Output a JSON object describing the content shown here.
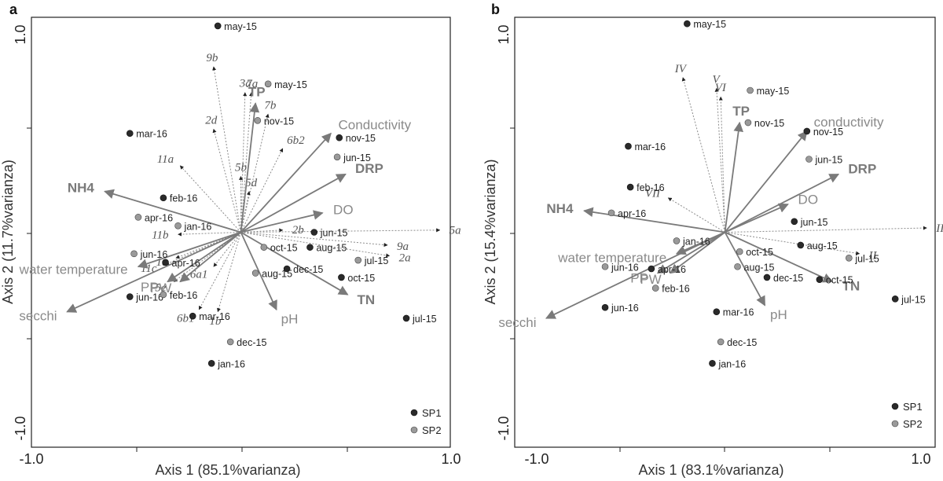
{
  "colors": {
    "frame": "#222222",
    "sp1": "#2a2a2a",
    "sp2": "#9a9a9a",
    "env_arrow": "#7a7a7a",
    "env_label": "#8a8a8a",
    "bold_label": "#7a7a7a",
    "species_line": "#8c8c8c",
    "species_label": "#555555",
    "sample_label": "#222222"
  },
  "chart_data": [
    {
      "type": "scatter",
      "panel_label": "a",
      "xlabel": "Axis 1 (85.1%varianza)",
      "ylabel": "Axis 2 (11.7%varianza)",
      "xlim": [
        -1.0,
        1.0
      ],
      "ylim": [
        -1.0,
        1.0
      ],
      "x_tick_labels": [
        "-1.0",
        "1.0"
      ],
      "y_tick_labels": [
        "1.0",
        "-1.0"
      ],
      "legend": [
        {
          "label": "SP1",
          "series": "SP1"
        },
        {
          "label": "SP2",
          "series": "SP2"
        }
      ],
      "legend_position": "bottom-right",
      "env_vectors": [
        {
          "label": "TP",
          "x": 0.07,
          "y": 0.6,
          "bold": true
        },
        {
          "label": "Conductivity",
          "x": 0.43,
          "y": 0.46,
          "bold": false
        },
        {
          "label": "DRP",
          "x": 0.5,
          "y": 0.27,
          "bold": true
        },
        {
          "label": "DO",
          "x": 0.39,
          "y": 0.09,
          "bold": false
        },
        {
          "label": "NH4",
          "x": -0.65,
          "y": 0.19,
          "bold": true
        },
        {
          "label": "water temperature",
          "x": -0.49,
          "y": -0.16,
          "bold": false
        },
        {
          "label": "PP",
          "x": -0.35,
          "y": -0.23,
          "bold": false
        },
        {
          "label": "PW",
          "x": -0.29,
          "y": -0.23,
          "bold": false
        },
        {
          "label": "secchi",
          "x": -0.83,
          "y": -0.37,
          "bold": false
        },
        {
          "label": "pH",
          "x": 0.17,
          "y": -0.36,
          "bold": false
        },
        {
          "label": "TN",
          "x": 0.51,
          "y": -0.29,
          "bold": true
        }
      ],
      "species_vectors": [
        {
          "label": "9b",
          "x": -0.13,
          "y": 0.77
        },
        {
          "label": "3a",
          "x": 0.02,
          "y": 0.65
        },
        {
          "label": "7a",
          "x": 0.05,
          "y": 0.65
        },
        {
          "label": "7b",
          "x": 0.13,
          "y": 0.55
        },
        {
          "label": "2d",
          "x": -0.13,
          "y": 0.48
        },
        {
          "label": "6b2",
          "x": 0.2,
          "y": 0.39
        },
        {
          "label": "11a",
          "x": -0.29,
          "y": 0.31
        },
        {
          "label": "5b",
          "x": 0.0,
          "y": 0.26
        },
        {
          "label": "5d",
          "x": 0.04,
          "y": 0.19
        },
        {
          "label": "5a",
          "x": 0.95,
          "y": 0.01
        },
        {
          "label": "2b",
          "x": 0.2,
          "y": 0.01
        },
        {
          "label": "11b",
          "x": -0.3,
          "y": -0.01
        },
        {
          "label": "9a",
          "x": 0.7,
          "y": -0.06
        },
        {
          "label": "2a",
          "x": 0.71,
          "y": -0.11
        },
        {
          "label": "6a1",
          "x": -0.13,
          "y": -0.16
        },
        {
          "label": "1c",
          "x": -0.31,
          "y": -0.12
        },
        {
          "label": "11c",
          "x": -0.36,
          "y": -0.15
        },
        {
          "label": "5e",
          "x": -0.32,
          "y": -0.23
        },
        {
          "label": "6b1",
          "x": -0.2,
          "y": -0.36
        },
        {
          "label": "1b",
          "x": -0.11,
          "y": -0.37
        }
      ],
      "points": [
        {
          "label": "may-15",
          "series": "SP1",
          "x": -0.11,
          "y": 0.96
        },
        {
          "label": "may-15",
          "series": "SP2",
          "x": 0.13,
          "y": 0.69
        },
        {
          "label": "nov-15",
          "series": "SP2",
          "x": 0.08,
          "y": 0.52
        },
        {
          "label": "nov-15",
          "series": "SP1",
          "x": 0.47,
          "y": 0.44
        },
        {
          "label": "jun-15",
          "series": "SP2",
          "x": 0.46,
          "y": 0.35
        },
        {
          "label": "mar-16",
          "series": "SP1",
          "x": -0.53,
          "y": 0.46
        },
        {
          "label": "feb-16",
          "series": "SP1",
          "x": -0.37,
          "y": 0.16
        },
        {
          "label": "apr-16",
          "series": "SP2",
          "x": -0.49,
          "y": 0.07
        },
        {
          "label": "jan-16",
          "series": "SP2",
          "x": -0.3,
          "y": 0.03
        },
        {
          "label": "jun-16",
          "series": "SP2",
          "x": -0.51,
          "y": -0.1
        },
        {
          "label": "apr-16",
          "series": "SP1",
          "x": -0.36,
          "y": -0.14
        },
        {
          "label": "jun-16",
          "series": "SP1",
          "x": -0.53,
          "y": -0.3
        },
        {
          "label": "feb-16",
          "series": "SP2",
          "x": -0.37,
          "y": -0.29
        },
        {
          "label": "mar-16",
          "series": "SP1",
          "x": -0.23,
          "y": -0.39
        },
        {
          "label": "dec-15",
          "series": "SP2",
          "x": -0.05,
          "y": -0.51
        },
        {
          "label": "jan-16",
          "series": "SP1",
          "x": -0.14,
          "y": -0.61
        },
        {
          "label": "jun-15",
          "series": "SP1",
          "x": 0.35,
          "y": 0.0
        },
        {
          "label": "oct-15",
          "series": "SP2",
          "x": 0.11,
          "y": -0.07
        },
        {
          "label": "aug-15",
          "series": "SP1",
          "x": 0.33,
          "y": -0.07
        },
        {
          "label": "jul-15",
          "series": "SP2",
          "x": 0.56,
          "y": -0.13
        },
        {
          "label": "dec-15",
          "series": "SP1",
          "x": 0.22,
          "y": -0.17
        },
        {
          "label": "oct-15",
          "series": "SP1",
          "x": 0.48,
          "y": -0.21
        },
        {
          "label": "aug-15",
          "series": "SP2",
          "x": 0.07,
          "y": -0.19
        },
        {
          "label": "jul-15",
          "series": "SP1",
          "x": 0.79,
          "y": -0.4
        }
      ]
    },
    {
      "type": "scatter",
      "panel_label": "b",
      "xlabel": "Axis 1 (83.1%varianza)",
      "ylabel": "Axis 2 (15.4%varianza)",
      "xlim": [
        -1.0,
        1.0
      ],
      "ylim": [
        -1.0,
        1.0
      ],
      "x_tick_labels": [
        "-1.0",
        "1.0"
      ],
      "y_tick_labels": [
        "1.0",
        "-1.0"
      ],
      "legend": [
        {
          "label": "SP1",
          "series": "SP1"
        },
        {
          "label": "SP2",
          "series": "SP2"
        }
      ],
      "legend_position": "bottom-right",
      "env_vectors": [
        {
          "label": "TP",
          "x": 0.07,
          "y": 0.51,
          "bold": true
        },
        {
          "label": "conductivity",
          "x": 0.39,
          "y": 0.47,
          "bold": false
        },
        {
          "label": "DRP",
          "x": 0.54,
          "y": 0.27,
          "bold": true
        },
        {
          "label": "DO",
          "x": 0.3,
          "y": 0.13,
          "bold": false
        },
        {
          "label": "NH4",
          "x": -0.67,
          "y": 0.1,
          "bold": true
        },
        {
          "label": "water temperature",
          "x": -0.23,
          "y": -0.1,
          "bold": false
        },
        {
          "label": "PP",
          "x": -0.32,
          "y": -0.19,
          "bold": false
        },
        {
          "label": "PW",
          "x": -0.26,
          "y": -0.19,
          "bold": false
        },
        {
          "label": "secchi",
          "x": -0.85,
          "y": -0.4,
          "bold": false
        },
        {
          "label": "pH",
          "x": 0.19,
          "y": -0.34,
          "bold": false
        },
        {
          "label": "TN",
          "x": 0.51,
          "y": -0.23,
          "bold": true
        }
      ],
      "species_vectors": [
        {
          "label": "IV",
          "x": -0.2,
          "y": 0.72
        },
        {
          "label": "V",
          "x": -0.04,
          "y": 0.67
        },
        {
          "label": "VI",
          "x": -0.02,
          "y": 0.63
        },
        {
          "label": "VII",
          "x": -0.27,
          "y": 0.16
        },
        {
          "label": "III",
          "x": 0.96,
          "y": 0.02
        },
        {
          "label": "II",
          "x": 0.64,
          "y": -0.1
        }
      ],
      "points": [
        {
          "label": "may-15",
          "series": "SP1",
          "x": -0.18,
          "y": 0.97
        },
        {
          "label": "may-15",
          "series": "SP2",
          "x": 0.12,
          "y": 0.66
        },
        {
          "label": "nov-15",
          "series": "SP2",
          "x": 0.11,
          "y": 0.51
        },
        {
          "label": "nov-15",
          "series": "SP1",
          "x": 0.39,
          "y": 0.47
        },
        {
          "label": "jun-15",
          "series": "SP2",
          "x": 0.4,
          "y": 0.34
        },
        {
          "label": "mar-16",
          "series": "SP1",
          "x": -0.46,
          "y": 0.4
        },
        {
          "label": "feb-16",
          "series": "SP1",
          "x": -0.45,
          "y": 0.21
        },
        {
          "label": "apr-16",
          "series": "SP2",
          "x": -0.54,
          "y": 0.09
        },
        {
          "label": "jan-16",
          "series": "SP2",
          "x": -0.23,
          "y": -0.04
        },
        {
          "label": "jun-16",
          "series": "SP2",
          "x": -0.57,
          "y": -0.16
        },
        {
          "label": "apr-16",
          "series": "SP1",
          "x": -0.35,
          "y": -0.17
        },
        {
          "label": "feb-16",
          "series": "SP2",
          "x": -0.33,
          "y": -0.26
        },
        {
          "label": "jun-16",
          "series": "SP1",
          "x": -0.57,
          "y": -0.35
        },
        {
          "label": "mar-16",
          "series": "SP1",
          "x": -0.04,
          "y": -0.37
        },
        {
          "label": "dec-15",
          "series": "SP2",
          "x": -0.02,
          "y": -0.51
        },
        {
          "label": "jan-16",
          "series": "SP1",
          "x": -0.06,
          "y": -0.61
        },
        {
          "label": "jun-15",
          "series": "SP1",
          "x": 0.33,
          "y": 0.05
        },
        {
          "label": "oct-15",
          "series": "SP2",
          "x": 0.07,
          "y": -0.09
        },
        {
          "label": "aug-15",
          "series": "SP1",
          "x": 0.36,
          "y": -0.06
        },
        {
          "label": "aug-15",
          "series": "SP2",
          "x": 0.06,
          "y": -0.16
        },
        {
          "label": "jul-15",
          "series": "SP2",
          "x": 0.59,
          "y": -0.12
        },
        {
          "label": "dec-15",
          "series": "SP1",
          "x": 0.2,
          "y": -0.21
        },
        {
          "label": "oct-15",
          "series": "SP1",
          "x": 0.45,
          "y": -0.22
        },
        {
          "label": "jul-15",
          "series": "SP1",
          "x": 0.81,
          "y": -0.31
        }
      ]
    }
  ]
}
